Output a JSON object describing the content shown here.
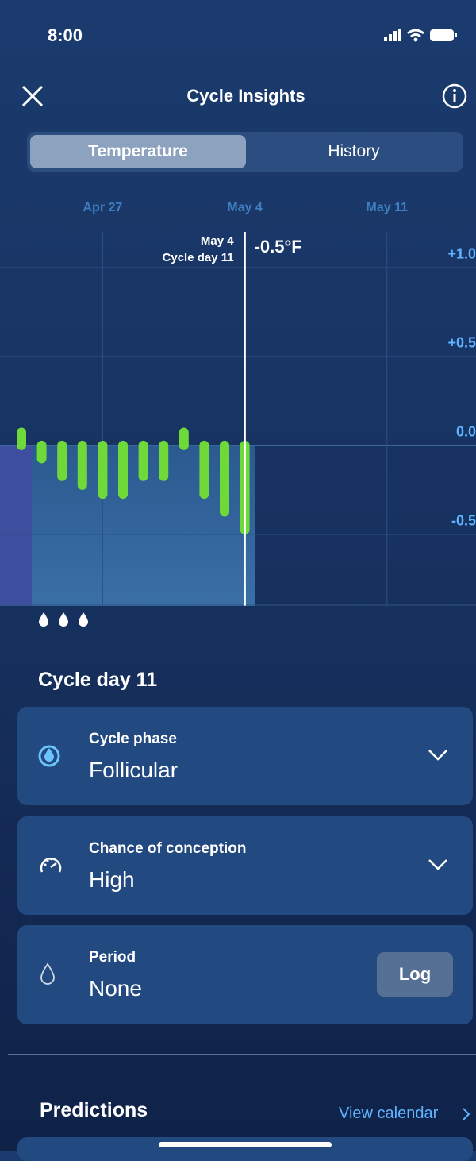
{
  "status_bar": {
    "time": "8:00"
  },
  "header": {
    "title": "Cycle Insights"
  },
  "tabs": [
    "Temperature",
    "History"
  ],
  "chart_data": {
    "type": "bar",
    "categories": [
      null,
      null,
      null,
      null,
      "Apr 27",
      null,
      null,
      null,
      null,
      null,
      null,
      "May 4",
      null,
      null,
      null,
      null,
      null,
      null,
      "May 11"
    ],
    "values": [
      0.1,
      -0.1,
      -0.2,
      -0.25,
      -0.3,
      -0.3,
      -0.2,
      -0.2,
      0.1,
      -0.3,
      -0.4,
      -0.5,
      null,
      null,
      null,
      null,
      null,
      null,
      null
    ],
    "value_labels": [
      null,
      null,
      null,
      null,
      null,
      null,
      null,
      null,
      null,
      null,
      null,
      "-0.5°F",
      null,
      null,
      null,
      null,
      null,
      null,
      null
    ],
    "color": "#6fd93a",
    "ylim": [
      -0.9,
      1.2
    ],
    "yticks": [
      {
        "value": 1,
        "label": "+1.0"
      },
      {
        "value": 0.5,
        "label": "+0.5"
      },
      {
        "value": 0,
        "label": "0.0"
      },
      {
        "value": -0.5,
        "label": "-0.5"
      }
    ],
    "grid": true,
    "annotation": {
      "date": "May 4",
      "label": "Cycle day 11"
    }
  },
  "cycle_day": "Cycle day 11",
  "cards": [
    {
      "label": "Cycle phase",
      "value": "Follicular"
    },
    {
      "label": "Chance of conception",
      "value": "High"
    },
    {
      "label": "Period",
      "value": "None",
      "button": "Log"
    }
  ],
  "predictions": {
    "title": "Predictions",
    "link": "View calendar"
  }
}
